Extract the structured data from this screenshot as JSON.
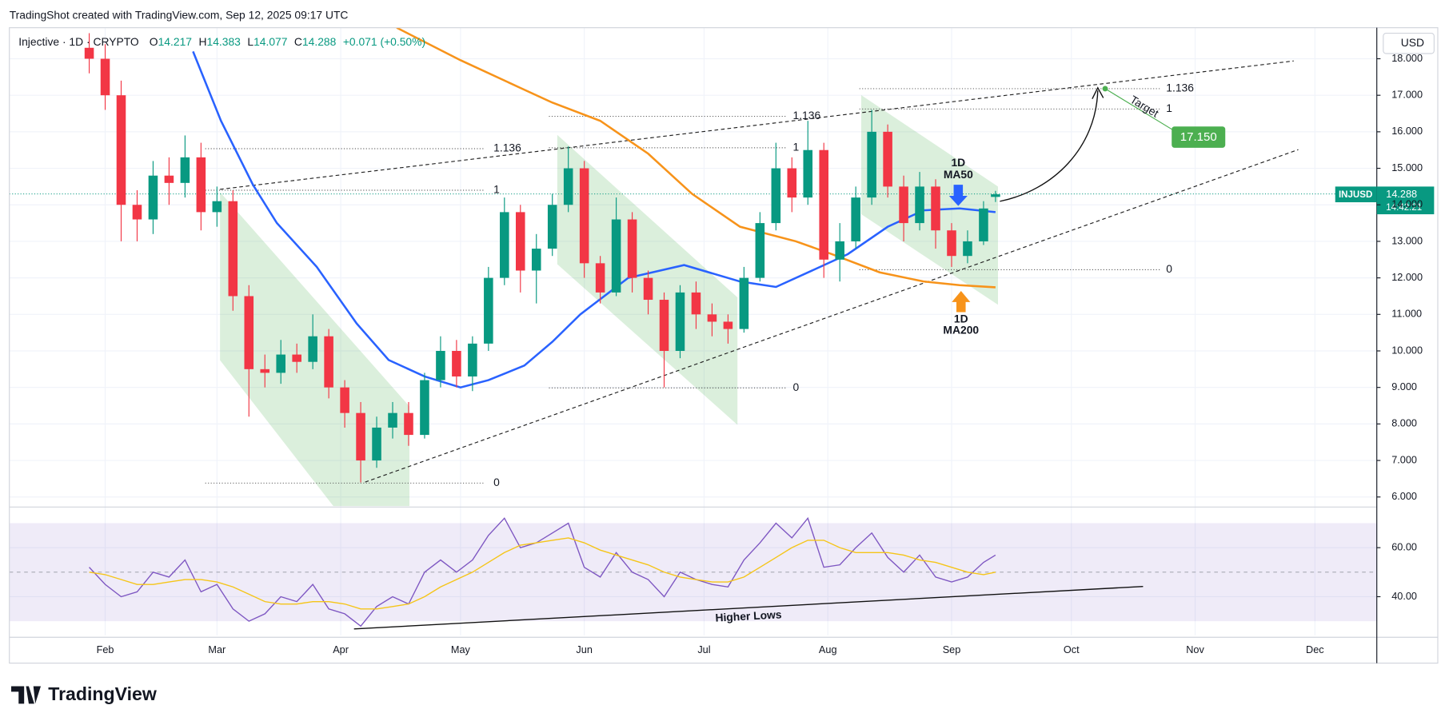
{
  "header": {
    "caption": "TradingShot created with TradingView.com, Sep 12, 2025 09:17 UTC",
    "brand": "TradingView"
  },
  "chart_data": [
    {
      "type": "candlestick",
      "title": "Injective · 1D · CRYPTO",
      "ohlc_labels": [
        "O",
        "H",
        "L",
        "C"
      ],
      "change": "+0.071 (+0.50%)",
      "currency": "USD",
      "symbol": "INJUSD",
      "countdown": "14:42:21",
      "up_color": "#089981",
      "down_color": "#f23645",
      "grid": true,
      "xlim": [
        8,
        350.5
      ],
      "xticks": [
        {
          "value": 32,
          "label": "Feb"
        },
        {
          "value": 60,
          "label": "Mar"
        },
        {
          "value": 91,
          "label": "Apr"
        },
        {
          "value": 121,
          "label": "May"
        },
        {
          "value": 152,
          "label": "Jun"
        },
        {
          "value": 182,
          "label": "Jul"
        },
        {
          "value": 213,
          "label": "Aug"
        },
        {
          "value": 244,
          "label": "Sep"
        },
        {
          "value": 274,
          "label": "Oct"
        },
        {
          "value": 305,
          "label": "Nov"
        },
        {
          "value": 335,
          "label": "Dec"
        }
      ],
      "ylim": [
        5.75,
        18.85
      ],
      "yticks": [
        {
          "value": 6,
          "label": "6.000"
        },
        {
          "value": 7,
          "label": "7.000"
        },
        {
          "value": 8,
          "label": "8.000"
        },
        {
          "value": 9,
          "label": "9.000"
        },
        {
          "value": 10,
          "label": "10.000"
        },
        {
          "value": 11,
          "label": "11.000"
        },
        {
          "value": 12,
          "label": "12.000"
        },
        {
          "value": 13,
          "label": "13.000"
        },
        {
          "value": 14,
          "label": "14.000"
        },
        {
          "value": 15,
          "label": "15.000"
        },
        {
          "value": 16,
          "label": "16.000"
        },
        {
          "value": 17,
          "label": "17.000"
        },
        {
          "value": 18,
          "label": "18.000"
        }
      ],
      "x": [
        28,
        32,
        36,
        40,
        44,
        48,
        52,
        56,
        60,
        64,
        68,
        72,
        76,
        80,
        84,
        88,
        92,
        96,
        100,
        104,
        108,
        112,
        116,
        120,
        124,
        128,
        132,
        136,
        140,
        144,
        148,
        152,
        156,
        160,
        164,
        168,
        172,
        176,
        180,
        184,
        188,
        192,
        196,
        200,
        204,
        208,
        212,
        216,
        220,
        224,
        228,
        232,
        236,
        240,
        244,
        248,
        252,
        255
      ],
      "open": [
        18.3,
        18.0,
        17.0,
        14.0,
        13.6,
        14.8,
        14.6,
        15.3,
        13.8,
        14.1,
        11.5,
        9.5,
        9.4,
        9.9,
        9.7,
        10.4,
        9.0,
        8.3,
        7.0,
        7.9,
        8.3,
        7.7,
        9.2,
        10.0,
        9.3,
        10.2,
        12.0,
        13.8,
        12.2,
        12.8,
        14.0,
        15.0,
        12.4,
        11.6,
        13.6,
        12.0,
        11.4,
        10.0,
        11.6,
        11.0,
        10.8,
        10.6,
        12.0,
        13.5,
        15.0,
        14.2,
        15.5,
        12.5,
        13.0,
        14.2,
        16.0,
        14.5,
        13.5,
        14.5,
        13.3,
        12.6,
        13.0,
        14.217
      ],
      "high": [
        18.7,
        18.4,
        17.4,
        14.4,
        15.2,
        15.3,
        15.9,
        15.7,
        14.5,
        14.4,
        11.8,
        9.9,
        10.3,
        10.2,
        11.0,
        10.6,
        9.2,
        8.6,
        8.2,
        8.6,
        8.6,
        9.4,
        10.4,
        10.3,
        10.4,
        12.3,
        14.2,
        14.0,
        13.2,
        14.3,
        15.6,
        15.2,
        12.6,
        14.2,
        13.8,
        12.2,
        11.6,
        11.8,
        11.9,
        11.3,
        11.0,
        12.3,
        13.8,
        15.7,
        15.3,
        16.3,
        15.7,
        13.5,
        14.5,
        16.6,
        16.2,
        14.8,
        14.9,
        14.7,
        13.5,
        13.3,
        14.1,
        14.383
      ],
      "low": [
        17.6,
        16.6,
        13.0,
        13.0,
        13.2,
        14.0,
        14.2,
        13.3,
        13.4,
        11.1,
        8.2,
        9.0,
        9.1,
        9.4,
        9.5,
        8.7,
        7.9,
        6.4,
        6.8,
        7.6,
        7.4,
        7.6,
        9.0,
        9.0,
        8.9,
        10.0,
        11.8,
        11.6,
        11.3,
        12.6,
        13.8,
        12.0,
        11.3,
        11.5,
        11.6,
        11.0,
        9.0,
        9.8,
        10.6,
        10.4,
        10.2,
        10.5,
        11.9,
        13.3,
        13.8,
        14.0,
        12.0,
        11.9,
        12.8,
        14.0,
        14.2,
        13.0,
        13.3,
        12.8,
        12.3,
        12.4,
        12.9,
        14.077
      ],
      "close": [
        18.0,
        17.0,
        14.0,
        13.6,
        14.8,
        14.6,
        15.3,
        13.8,
        14.1,
        11.5,
        9.5,
        9.4,
        9.9,
        9.7,
        10.4,
        9.0,
        8.3,
        7.0,
        7.9,
        8.3,
        7.7,
        9.2,
        10.0,
        9.3,
        10.2,
        12.0,
        13.8,
        12.2,
        12.8,
        14.0,
        15.0,
        12.4,
        11.6,
        13.6,
        12.0,
        11.4,
        10.0,
        11.6,
        11.0,
        10.8,
        10.6,
        12.0,
        13.5,
        15.0,
        14.2,
        15.5,
        12.5,
        13.0,
        14.2,
        16.0,
        14.5,
        13.5,
        14.5,
        13.3,
        12.6,
        13.0,
        13.9,
        14.288
      ],
      "series": [
        {
          "color": "#2962ff",
          "x": [
            54,
            61,
            69,
            75,
            85,
            95,
            103,
            112,
            121,
            128,
            137,
            144,
            151,
            163,
            177,
            191,
            200,
            209,
            218,
            228,
            237,
            246,
            255
          ],
          "values": [
            18.2,
            16.3,
            14.55,
            13.5,
            12.3,
            10.75,
            9.75,
            9.3,
            9.0,
            9.2,
            9.6,
            10.25,
            11.0,
            12.0,
            12.35,
            11.9,
            11.75,
            12.2,
            12.65,
            13.4,
            13.85,
            13.9,
            13.8
          ]
        },
        {
          "color": "#f7931a",
          "x": [
            105,
            121,
            136,
            144,
            156,
            168,
            179,
            191,
            205,
            214,
            226,
            237,
            246,
            255
          ],
          "values": [
            18.85,
            17.96,
            17.2,
            16.8,
            16.3,
            15.4,
            14.3,
            13.4,
            13.0,
            12.65,
            12.15,
            11.9,
            11.8,
            11.74
          ]
        }
      ],
      "annotations": {
        "fib_labels": [
          "1.136",
          "1",
          "0",
          "1.136",
          "1",
          "0",
          "1.136",
          "1",
          "0"
        ],
        "target_label": "Target",
        "target_price": "17.150",
        "ma50_label": [
          "1D",
          "MA50"
        ],
        "ma200_label": [
          "1D",
          "MA200"
        ]
      }
    },
    {
      "type": "line",
      "grid": true,
      "ylim": [
        24.2,
        76.2
      ],
      "yticks": [
        {
          "value": 40,
          "label": "40.00"
        },
        {
          "value": 60,
          "label": "60.00"
        }
      ],
      "band": [
        30,
        70
      ],
      "midline": 50,
      "x": [
        28,
        32,
        36,
        40,
        44,
        48,
        52,
        56,
        60,
        64,
        68,
        72,
        76,
        80,
        84,
        88,
        92,
        96,
        100,
        104,
        108,
        112,
        116,
        120,
        124,
        128,
        132,
        136,
        140,
        144,
        148,
        152,
        156,
        160,
        164,
        168,
        172,
        176,
        180,
        184,
        188,
        192,
        196,
        200,
        204,
        208,
        212,
        216,
        220,
        224,
        228,
        232,
        236,
        240,
        244,
        248,
        252,
        255
      ],
      "series": [
        {
          "color": "#7e57c2",
          "values": [
            52,
            45,
            40,
            42,
            50,
            48,
            55,
            42,
            45,
            35,
            30,
            33,
            40,
            38,
            45,
            35,
            33,
            28,
            36,
            40,
            37,
            50,
            55,
            50,
            55,
            65,
            72,
            60,
            62,
            66,
            70,
            52,
            48,
            58,
            50,
            47,
            40,
            50,
            47,
            45,
            44,
            55,
            62,
            70,
            64,
            72,
            52,
            53,
            60,
            66,
            56,
            50,
            57,
            48,
            46,
            48,
            54,
            57
          ]
        },
        {
          "color": "#f5c518",
          "values": [
            50,
            49,
            47,
            45,
            45,
            46,
            47,
            47,
            46,
            44,
            41,
            38,
            37,
            37,
            38,
            38,
            37,
            35,
            35,
            36,
            37,
            40,
            44,
            47,
            50,
            54,
            58,
            61,
            62,
            63,
            64,
            62,
            59,
            57,
            55,
            53,
            50,
            48,
            47,
            46,
            46,
            48,
            52,
            56,
            60,
            63,
            63,
            60,
            58,
            58,
            58,
            57,
            55,
            54,
            52,
            50,
            49,
            50
          ]
        }
      ],
      "annotation": "Higher Lows"
    }
  ]
}
